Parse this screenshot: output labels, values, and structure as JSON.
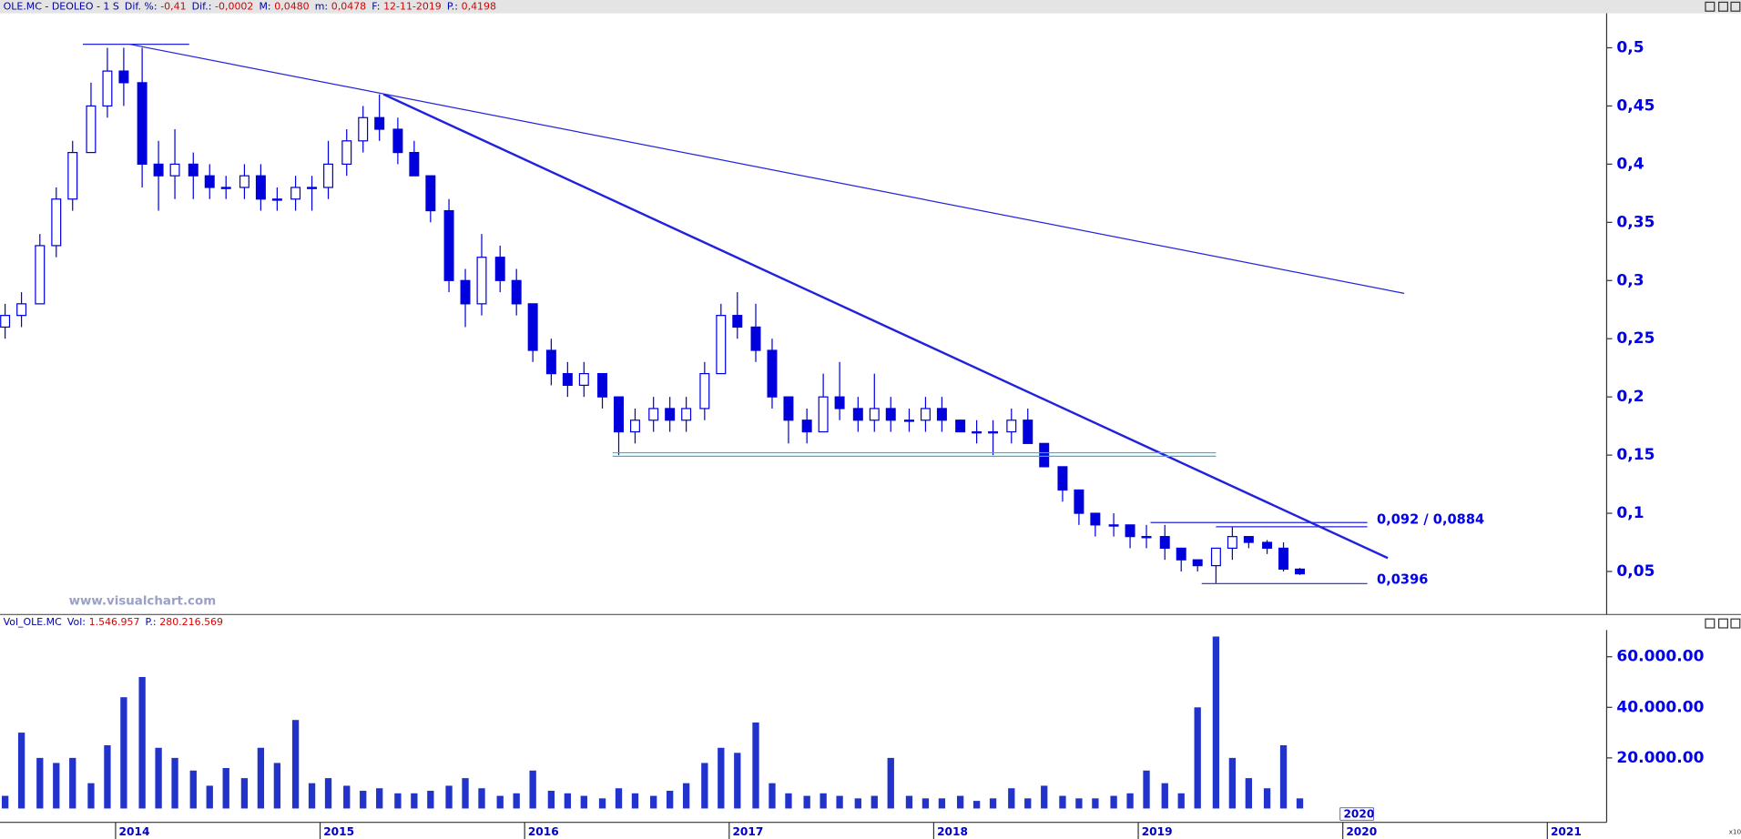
{
  "header": {
    "title": "OLE.MC - DEOLEO -  1 S",
    "stats": [
      {
        "label": "Dif. %:",
        "value": "-0,41"
      },
      {
        "label": "Dif.:",
        "value": "-0,0002"
      },
      {
        "label": "M:",
        "value": "0,0480"
      },
      {
        "label": "m:",
        "value": "0,0478"
      },
      {
        "label": "F:",
        "value": "12-11-2019"
      },
      {
        "label": "P.:",
        "value": "0,4198"
      }
    ]
  },
  "volume_header": {
    "title": "Vol_OLE.MC",
    "stats": [
      {
        "label": "Vol:",
        "value": "1.546.957"
      },
      {
        "label": "P.:",
        "value": "280.216.569"
      }
    ]
  },
  "watermark": "www.visualchart.com",
  "cursor_label": "2020",
  "scale_label": "x10",
  "chart_data": [
    {
      "type": "candlestick",
      "color": "#0000dd",
      "xlim": [
        2013.435,
        2021.29
      ],
      "xticks": [
        2014,
        2015,
        2016,
        2017,
        2018,
        2019,
        2020,
        2021
      ],
      "ylim": [
        0.013,
        0.5296
      ],
      "yticks": [
        {
          "value": 0.05,
          "label": "0,05"
        },
        {
          "value": 0.1,
          "label": "0,1"
        },
        {
          "value": 0.15,
          "label": "0,15"
        },
        {
          "value": 0.2,
          "label": "0,2"
        },
        {
          "value": 0.25,
          "label": "0,25"
        },
        {
          "value": 0.3,
          "label": "0,3"
        },
        {
          "value": 0.35,
          "label": "0,35"
        },
        {
          "value": 0.4,
          "label": "0,4"
        },
        {
          "value": 0.45,
          "label": "0,45"
        },
        {
          "value": 0.5,
          "label": "0,5"
        }
      ],
      "x": [
        2013.46,
        2013.54,
        2013.63,
        2013.71,
        2013.79,
        2013.88,
        2013.96,
        2014.04,
        2014.13,
        2014.21,
        2014.29,
        2014.38,
        2014.46,
        2014.54,
        2014.63,
        2014.71,
        2014.79,
        2014.88,
        2014.96,
        2015.04,
        2015.13,
        2015.21,
        2015.29,
        2015.38,
        2015.46,
        2015.54,
        2015.63,
        2015.71,
        2015.79,
        2015.88,
        2015.96,
        2016.04,
        2016.13,
        2016.21,
        2016.29,
        2016.38,
        2016.46,
        2016.54,
        2016.63,
        2016.71,
        2016.79,
        2016.88,
        2016.96,
        2017.04,
        2017.13,
        2017.21,
        2017.29,
        2017.38,
        2017.46,
        2017.54,
        2017.63,
        2017.71,
        2017.79,
        2017.88,
        2017.96,
        2018.04,
        2018.13,
        2018.21,
        2018.29,
        2018.38,
        2018.46,
        2018.54,
        2018.63,
        2018.71,
        2018.79,
        2018.88,
        2018.96,
        2019.04,
        2019.13,
        2019.21,
        2019.29,
        2019.38,
        2019.46,
        2019.54,
        2019.63,
        2019.71,
        2019.79
      ],
      "open": [
        0.26,
        0.27,
        0.28,
        0.33,
        0.37,
        0.41,
        0.45,
        0.48,
        0.47,
        0.4,
        0.39,
        0.4,
        0.39,
        0.38,
        0.38,
        0.39,
        0.37,
        0.37,
        0.38,
        0.38,
        0.4,
        0.42,
        0.44,
        0.43,
        0.41,
        0.39,
        0.36,
        0.3,
        0.28,
        0.32,
        0.3,
        0.28,
        0.24,
        0.22,
        0.21,
        0.22,
        0.2,
        0.17,
        0.18,
        0.19,
        0.18,
        0.19,
        0.22,
        0.27,
        0.26,
        0.24,
        0.2,
        0.18,
        0.17,
        0.2,
        0.19,
        0.18,
        0.19,
        0.18,
        0.18,
        0.19,
        0.18,
        0.17,
        0.17,
        0.17,
        0.18,
        0.16,
        0.14,
        0.12,
        0.1,
        0.09,
        0.09,
        0.08,
        0.08,
        0.07,
        0.06,
        0.055,
        0.07,
        0.08,
        0.075,
        0.07,
        0.052
      ],
      "high": [
        0.28,
        0.29,
        0.34,
        0.38,
        0.42,
        0.47,
        0.5,
        0.5,
        0.5,
        0.42,
        0.43,
        0.41,
        0.4,
        0.39,
        0.4,
        0.4,
        0.38,
        0.39,
        0.39,
        0.42,
        0.43,
        0.45,
        0.46,
        0.44,
        0.42,
        0.39,
        0.37,
        0.31,
        0.34,
        0.33,
        0.31,
        0.28,
        0.25,
        0.23,
        0.23,
        0.22,
        0.2,
        0.19,
        0.2,
        0.2,
        0.2,
        0.23,
        0.28,
        0.29,
        0.28,
        0.25,
        0.2,
        0.19,
        0.22,
        0.23,
        0.2,
        0.22,
        0.2,
        0.19,
        0.2,
        0.2,
        0.18,
        0.18,
        0.18,
        0.19,
        0.19,
        0.16,
        0.14,
        0.12,
        0.1,
        0.1,
        0.09,
        0.09,
        0.09,
        0.07,
        0.06,
        0.07,
        0.088,
        0.08,
        0.077,
        0.075,
        0.053
      ],
      "low": [
        0.25,
        0.26,
        0.28,
        0.32,
        0.36,
        0.41,
        0.44,
        0.45,
        0.38,
        0.36,
        0.37,
        0.37,
        0.37,
        0.37,
        0.37,
        0.36,
        0.36,
        0.36,
        0.36,
        0.37,
        0.39,
        0.41,
        0.42,
        0.4,
        0.39,
        0.35,
        0.29,
        0.26,
        0.27,
        0.29,
        0.27,
        0.23,
        0.21,
        0.2,
        0.2,
        0.19,
        0.15,
        0.16,
        0.17,
        0.17,
        0.17,
        0.18,
        0.22,
        0.25,
        0.23,
        0.19,
        0.16,
        0.16,
        0.17,
        0.18,
        0.17,
        0.17,
        0.17,
        0.17,
        0.17,
        0.17,
        0.17,
        0.16,
        0.15,
        0.16,
        0.16,
        0.14,
        0.11,
        0.09,
        0.08,
        0.08,
        0.07,
        0.07,
        0.06,
        0.05,
        0.05,
        0.04,
        0.06,
        0.07,
        0.065,
        0.05,
        0.047
      ],
      "close": [
        0.27,
        0.28,
        0.33,
        0.37,
        0.41,
        0.45,
        0.48,
        0.47,
        0.4,
        0.39,
        0.4,
        0.39,
        0.38,
        0.38,
        0.39,
        0.37,
        0.37,
        0.38,
        0.38,
        0.4,
        0.42,
        0.44,
        0.43,
        0.41,
        0.39,
        0.36,
        0.3,
        0.28,
        0.32,
        0.3,
        0.28,
        0.24,
        0.22,
        0.21,
        0.22,
        0.2,
        0.17,
        0.18,
        0.19,
        0.18,
        0.19,
        0.22,
        0.27,
        0.26,
        0.24,
        0.2,
        0.18,
        0.17,
        0.2,
        0.19,
        0.18,
        0.19,
        0.18,
        0.18,
        0.19,
        0.18,
        0.17,
        0.17,
        0.17,
        0.18,
        0.16,
        0.14,
        0.12,
        0.1,
        0.09,
        0.09,
        0.08,
        0.08,
        0.07,
        0.06,
        0.055,
        0.07,
        0.08,
        0.075,
        0.07,
        0.052,
        0.048
      ],
      "lines": [
        {
          "color": "#2222dd",
          "width": 1,
          "x": [
            2014.07,
            2020.3
          ],
          "y": [
            0.503,
            0.289
          ]
        },
        {
          "color": "#2222dd",
          "width": 2,
          "x": [
            2015.31,
            2020.22
          ],
          "y": [
            0.46,
            0.0615
          ]
        },
        {
          "color": "#22bbdd",
          "width": 1,
          "x": [
            2016.43,
            2019.38
          ],
          "y": [
            0.152,
            0.152
          ]
        },
        {
          "color": "#22bbdd",
          "width": 1,
          "x": [
            2016.43,
            2019.38
          ],
          "y": [
            0.149,
            0.149
          ]
        },
        {
          "color": "#2222dd",
          "width": 1,
          "x": [
            2013.84,
            2014.36
          ],
          "y": [
            0.503,
            0.503
          ]
        },
        {
          "color": "#2222dd",
          "width": 1,
          "x": [
            2019.06,
            2020.12
          ],
          "y": [
            0.092,
            0.092
          ]
        },
        {
          "color": "#2222dd",
          "width": 1,
          "x": [
            2019.38,
            2020.12
          ],
          "y": [
            0.0884,
            0.0884
          ]
        },
        {
          "color": "#2222dd",
          "width": 1,
          "x": [
            2019.31,
            2020.12
          ],
          "y": [
            0.0396,
            0.0396
          ]
        }
      ],
      "annotations": [
        "0,092 / 0,0884",
        "0,0396"
      ]
    },
    {
      "type": "bar",
      "color": "#2233cc",
      "xlim": [
        2013.435,
        2021.29
      ],
      "ylim": [
        -4600,
        70550
      ],
      "yticks": [
        {
          "value": 20000,
          "label": "20.000.00"
        },
        {
          "value": 40000,
          "label": "40.000.00"
        },
        {
          "value": 60000,
          "label": "60.000.00"
        }
      ],
      "x": [
        2013.46,
        2013.54,
        2013.63,
        2013.71,
        2013.79,
        2013.88,
        2013.96,
        2014.04,
        2014.13,
        2014.21,
        2014.29,
        2014.38,
        2014.46,
        2014.54,
        2014.63,
        2014.71,
        2014.79,
        2014.88,
        2014.96,
        2015.04,
        2015.13,
        2015.21,
        2015.29,
        2015.38,
        2015.46,
        2015.54,
        2015.63,
        2015.71,
        2015.79,
        2015.88,
        2015.96,
        2016.04,
        2016.13,
        2016.21,
        2016.29,
        2016.38,
        2016.46,
        2016.54,
        2016.63,
        2016.71,
        2016.79,
        2016.88,
        2016.96,
        2017.04,
        2017.13,
        2017.21,
        2017.29,
        2017.38,
        2017.46,
        2017.54,
        2017.63,
        2017.71,
        2017.79,
        2017.88,
        2017.96,
        2018.04,
        2018.13,
        2018.21,
        2018.29,
        2018.38,
        2018.46,
        2018.54,
        2018.63,
        2018.71,
        2018.79,
        2018.88,
        2018.96,
        2019.04,
        2019.13,
        2019.21,
        2019.29,
        2019.38,
        2019.46,
        2019.54,
        2019.63,
        2019.71,
        2019.79
      ],
      "values": [
        5000,
        30000,
        20000,
        18000,
        20000,
        10000,
        25000,
        44000,
        52000,
        24000,
        20000,
        15000,
        9000,
        16000,
        12000,
        24000,
        18000,
        35000,
        10000,
        12000,
        9000,
        7000,
        8000,
        6000,
        6000,
        7000,
        9000,
        12000,
        8000,
        5000,
        6000,
        15000,
        7000,
        6000,
        5000,
        4000,
        8000,
        6000,
        5000,
        7000,
        10000,
        18000,
        24000,
        22000,
        34000,
        10000,
        6000,
        5000,
        6000,
        5000,
        4000,
        5000,
        20000,
        5000,
        4000,
        4000,
        5000,
        3000,
        4000,
        8000,
        4000,
        9000,
        5000,
        4000,
        4000,
        5000,
        6000,
        15000,
        10000,
        6000,
        40000,
        68000,
        20000,
        12000,
        8000,
        25000,
        4000
      ]
    }
  ]
}
